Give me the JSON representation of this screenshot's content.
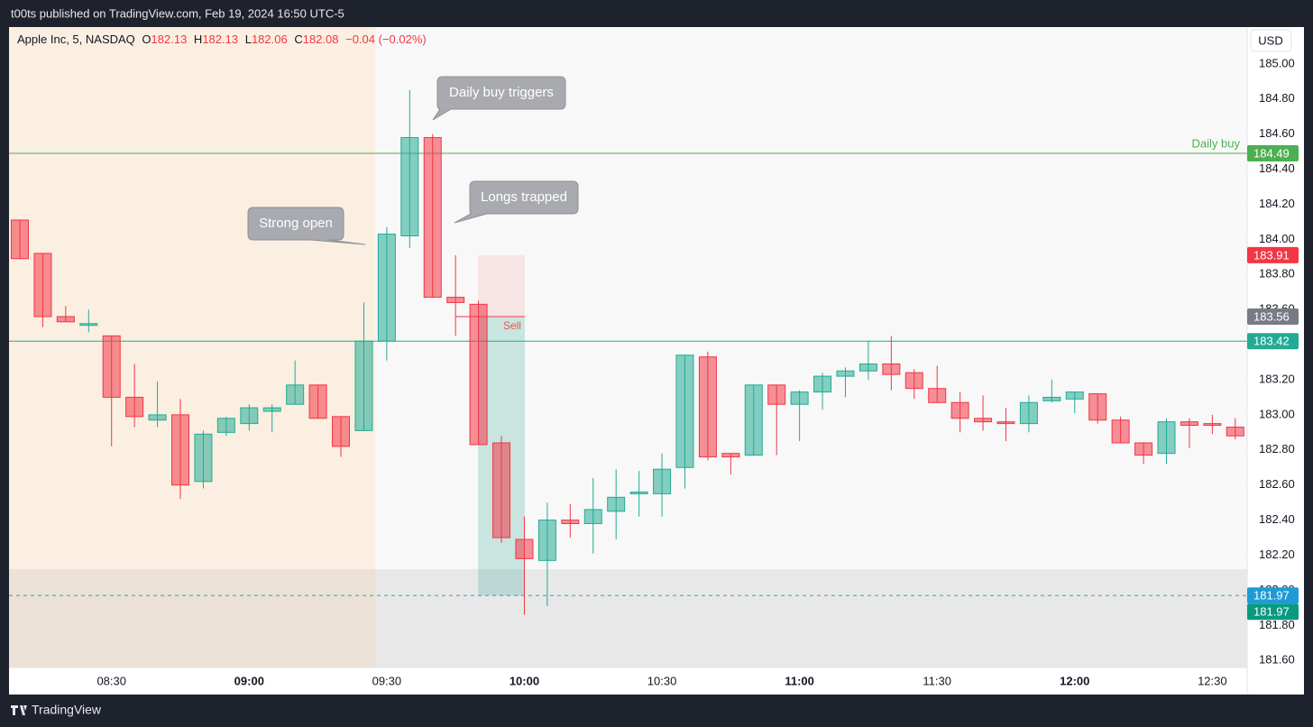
{
  "header": {
    "publisher": "t00ts published on TradingView.com, Feb 19, 2024 16:50 UTC-5",
    "brand": "TradingView"
  },
  "chart_data": {
    "type": "candlestick",
    "legend": {
      "symbol": "Apple Inc, 5, NASDAQ",
      "fields": [
        {
          "key": "O",
          "value": 182.13
        },
        {
          "key": "H",
          "value": 182.13
        },
        {
          "key": "L",
          "value": 182.06
        },
        {
          "key": "C",
          "value": 182.08
        }
      ],
      "change": "−0.04 (−0.02%)"
    },
    "currency": "USD",
    "categories": [
      null,
      null,
      null,
      null,
      "08:30",
      null,
      null,
      null,
      null,
      null,
      "09:00",
      null,
      null,
      null,
      null,
      null,
      "09:30",
      null,
      null,
      null,
      null,
      null,
      "10:00",
      null,
      null,
      null,
      null,
      null,
      "10:30",
      null,
      null,
      null,
      null,
      null,
      "11:00",
      null,
      null,
      null,
      null,
      null,
      "11:30",
      null,
      null,
      null,
      null,
      null,
      "12:00",
      null,
      null,
      null,
      null,
      null,
      "12:30",
      null
    ],
    "open": [
      184.11,
      183.92,
      183.56,
      183.51,
      183.45,
      183.1,
      182.97,
      183.0,
      182.62,
      182.9,
      182.95,
      183.02,
      183.06,
      183.17,
      182.99,
      182.91,
      183.42,
      184.02,
      184.58,
      183.67,
      183.63,
      182.84,
      182.29,
      182.17,
      182.4,
      182.38,
      182.45,
      182.55,
      182.55,
      182.7,
      183.33,
      182.78,
      182.77,
      183.17,
      183.06,
      183.13,
      183.22,
      183.25,
      183.29,
      183.24,
      183.15,
      183.07,
      182.98,
      182.96,
      182.95,
      183.08,
      183.09,
      183.12,
      182.97,
      182.84,
      182.78,
      182.96,
      182.95,
      182.93
    ],
    "high": [
      184.11,
      183.92,
      183.62,
      183.6,
      183.45,
      183.29,
      183.19,
      183.09,
      182.91,
      182.99,
      183.06,
      183.06,
      183.31,
      183.17,
      182.99,
      183.64,
      184.07,
      184.85,
      184.6,
      183.91,
      183.65,
      182.88,
      182.42,
      182.5,
      182.49,
      182.64,
      182.69,
      182.68,
      182.78,
      183.34,
      183.36,
      182.78,
      183.17,
      183.17,
      183.14,
      183.24,
      183.27,
      183.42,
      183.45,
      183.26,
      183.28,
      183.13,
      183.11,
      183.04,
      183.11,
      183.2,
      183.13,
      183.12,
      182.99,
      182.84,
      182.98,
      182.98,
      183.0,
      182.98
    ],
    "low": [
      183.89,
      183.5,
      183.53,
      183.47,
      182.82,
      182.93,
      182.93,
      182.52,
      182.58,
      182.88,
      182.91,
      182.9,
      183.06,
      182.98,
      182.76,
      182.91,
      183.31,
      183.95,
      183.67,
      183.45,
      182.83,
      182.27,
      181.86,
      181.91,
      182.3,
      182.21,
      182.29,
      182.42,
      182.42,
      182.58,
      182.74,
      182.66,
      182.77,
      182.77,
      182.85,
      183.03,
      183.1,
      183.2,
      183.14,
      183.09,
      183.07,
      182.9,
      182.91,
      182.85,
      182.9,
      183.07,
      183.01,
      182.95,
      182.84,
      182.72,
      182.72,
      182.81,
      182.89,
      182.86
    ],
    "close": [
      183.89,
      183.56,
      183.53,
      183.52,
      183.1,
      182.99,
      183.0,
      182.6,
      182.89,
      182.98,
      183.04,
      183.04,
      183.17,
      182.98,
      182.82,
      183.42,
      184.03,
      184.58,
      183.67,
      183.64,
      182.83,
      182.3,
      182.18,
      182.4,
      182.38,
      182.46,
      182.53,
      182.56,
      182.69,
      183.34,
      182.76,
      182.76,
      183.17,
      183.06,
      183.13,
      183.22,
      183.25,
      183.29,
      183.23,
      183.15,
      183.07,
      182.98,
      182.96,
      182.95,
      183.07,
      183.1,
      183.13,
      182.97,
      182.84,
      182.77,
      182.96,
      182.94,
      182.94,
      182.88
    ],
    "up_color": "#22ab94",
    "down_color": "#f23645",
    "ylim": [
      181.56,
      185.21
    ],
    "yticks": [
      {
        "value": 185,
        "label": "185.00"
      },
      {
        "value": 184.8,
        "label": "184.80"
      },
      {
        "value": 184.6,
        "label": "184.60"
      },
      {
        "value": 184.4,
        "label": "184.40"
      },
      {
        "value": 184.2,
        "label": "184.20"
      },
      {
        "value": 184,
        "label": "184.00"
      },
      {
        "value": 183.8,
        "label": "183.80"
      },
      {
        "value": 183.6,
        "label": "183.60"
      },
      {
        "value": 183.4,
        "label": "183.40"
      },
      {
        "value": 183.2,
        "label": "183.20"
      },
      {
        "value": 183,
        "label": "183.00"
      },
      {
        "value": 182.8,
        "label": "182.80"
      },
      {
        "value": 182.6,
        "label": "182.60"
      },
      {
        "value": 182.4,
        "label": "182.40"
      },
      {
        "value": 182.2,
        "label": "182.20"
      },
      {
        "value": 182,
        "label": "182.00"
      },
      {
        "value": 181.8,
        "label": "181.80"
      },
      {
        "value": 181.6,
        "label": "181.60"
      }
    ],
    "grid": false,
    "levels": [
      {
        "name": "Daily buy",
        "value": 184.49,
        "color": "#4caf50"
      },
      {
        "value": 183.42,
        "color": "#22ab94"
      },
      {
        "value": 181.97,
        "color": "#2a9fc9",
        "dashed": true
      }
    ],
    "price_labels": [
      {
        "value": 184.49,
        "color": "#4caf50"
      },
      {
        "value": 183.91,
        "color": "#f23645"
      },
      {
        "value": 183.56,
        "color": "#787b86"
      },
      {
        "value": 183.42,
        "color": "#22ab94"
      },
      {
        "value": 181.97,
        "color": "#1e9bd7"
      },
      {
        "value": 181.97,
        "color": "#089981"
      }
    ],
    "zone": {
      "top": 182.12,
      "color": "#787b86"
    },
    "position": {
      "label": "Sell",
      "entry": 183.56,
      "stop": 183.91,
      "target": 181.97
    },
    "annotations": [
      "Strong open",
      "Daily buy triggers",
      "Longs trapped"
    ]
  }
}
